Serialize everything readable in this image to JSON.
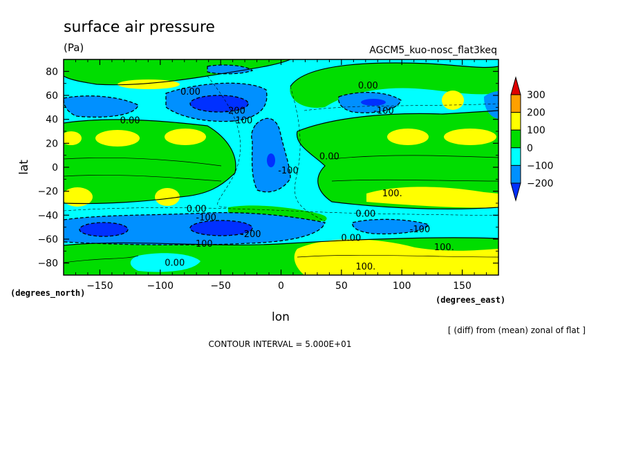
{
  "chart_data": {
    "type": "heatmap",
    "title": "surface air pressure",
    "units": "(Pa)",
    "model_label": "AGCM5_kuo-nosc_flat3keq",
    "xlabel": "lon",
    "ylabel": "lat",
    "x_unit_label": "(degrees_east)",
    "y_unit_label": "(degrees_north)",
    "xlim": [
      -180,
      180
    ],
    "ylim": [
      -90,
      90
    ],
    "x_ticks": [
      -150,
      -100,
      -50,
      0,
      50,
      100,
      150
    ],
    "y_ticks": [
      -80,
      -60,
      -40,
      -20,
      0,
      20,
      40,
      60,
      80
    ],
    "x_tick_labels": [
      "−150",
      "−100",
      "−50",
      "0",
      "50",
      "100",
      "150"
    ],
    "y_tick_labels": [
      "−80",
      "−60",
      "−40",
      "−20",
      "0",
      "20",
      "40",
      "60",
      "80"
    ],
    "colorbar": {
      "levels": [
        300,
        200,
        100,
        0,
        -100,
        -200
      ],
      "labels": [
        "300",
        "200",
        "100",
        "0",
        "−100",
        "−200"
      ],
      "colors": [
        "#e00000",
        "#ffa000",
        "#ffff00",
        "#00dd00",
        "#00ffff",
        "#0090ff",
        "#0030ff"
      ]
    },
    "contour_labels": [
      {
        "text": "0.00",
        "lon": -75,
        "lat": 63
      },
      {
        "text": "0.00",
        "lon": 72,
        "lat": 68
      },
      {
        "text": "0.00",
        "lon": -125,
        "lat": 39
      },
      {
        "text": "-200",
        "lon": -38,
        "lat": 47
      },
      {
        "text": "-100",
        "lon": -32,
        "lat": 39
      },
      {
        "text": "-100",
        "lon": 85,
        "lat": 47
      },
      {
        "text": "0.00",
        "lon": 40,
        "lat": 9
      },
      {
        "text": "-100",
        "lon": 6,
        "lat": -3
      },
      {
        "text": "100.",
        "lon": 92,
        "lat": -22
      },
      {
        "text": "0.00",
        "lon": -70,
        "lat": -35
      },
      {
        "text": "-100",
        "lon": -62,
        "lat": -42
      },
      {
        "text": "0.00",
        "lon": 70,
        "lat": -39
      },
      {
        "text": "-100",
        "lon": 115,
        "lat": -52
      },
      {
        "text": "-200",
        "lon": -25,
        "lat": -56
      },
      {
        "text": "-100",
        "lon": -65,
        "lat": -64
      },
      {
        "text": "0.00",
        "lon": 58,
        "lat": -59
      },
      {
        "text": "100.",
        "lon": 135,
        "lat": -67
      },
      {
        "text": "0.00",
        "lon": -88,
        "lat": -80
      },
      {
        "text": "100.",
        "lon": 70,
        "lat": -83
      }
    ],
    "footnote": "[ (diff) from (mean) zonal of flat ]",
    "contour_interval": "CONTOUR INTERVAL = 5.000E+01",
    "grid": false
  },
  "colors": {
    "c300": "#e00000",
    "c200": "#ffa000",
    "c100": "#ffff00",
    "c0": "#00dd00",
    "cm100": "#00ffff",
    "cm200": "#0090ff",
    "cm300": "#0030ff"
  }
}
